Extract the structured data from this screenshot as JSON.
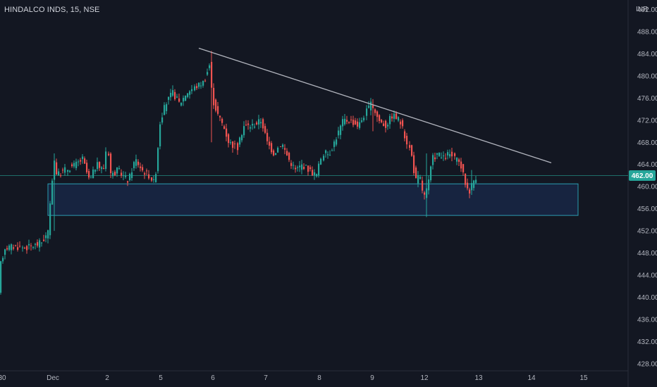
{
  "header": {
    "title": "HINDALCO INDS, 15, NSE",
    "currency": "INR"
  },
  "colors": {
    "background": "#131722",
    "up": "#26a69a",
    "down": "#ef5350",
    "trendline": "#b2b5be",
    "zone_fill": "#1c2f5a",
    "zone_stroke": "#2a9cb0",
    "last_price_line": "#26a69a",
    "grid": "#1e222d"
  },
  "chart_data": {
    "type": "candlestick",
    "title": "HINDALCO INDS, 15, NSE",
    "ylim": [
      426,
      496
    ],
    "grid": false,
    "y_ticks": [
      428,
      432,
      436,
      440,
      444,
      448,
      452,
      456,
      460,
      464,
      468,
      472,
      476,
      480,
      484,
      488,
      492
    ],
    "y_tick_labels": [
      "428.00",
      "432.00",
      "436.00",
      "440.00",
      "444.00",
      "448.00",
      "452.00",
      "456.00",
      "460.00",
      "464.00",
      "468.00",
      "472.00",
      "476.00",
      "480.00",
      "484.00",
      "488.00",
      "492.00"
    ],
    "x_tick_labels": [
      "30",
      "Dec",
      "2",
      "5",
      "6",
      "7",
      "8",
      "9",
      "12",
      "13",
      "14",
      "15"
    ],
    "last_price": 462.0,
    "last_price_label": "462.00",
    "support_zone": {
      "low": 454.8,
      "high": 460.5,
      "from": "Dec 1",
      "to": "Dec 15"
    },
    "trendline": {
      "from": [
        "Dec 6",
        485.0
      ],
      "to": [
        "Dec 14",
        464.3
      ]
    },
    "candles_summary": [
      {
        "session": "30",
        "open": 438.5,
        "high": 449.5,
        "low": 438.0,
        "close": 449.0
      },
      {
        "session": "Dec 1",
        "open": 450.5,
        "high": 466.5,
        "low": 454.0,
        "close": 463.0
      },
      {
        "session": "2",
        "open": 463.0,
        "high": 470.5,
        "low": 457.5,
        "close": 463.0
      },
      {
        "session": "5",
        "open": 466.0,
        "high": 484.5,
        "low": 468.0,
        "close": 483.0
      },
      {
        "session": "6",
        "open": 477.0,
        "high": 477.0,
        "low": 467.5,
        "close": 470.0
      },
      {
        "session": "7",
        "open": 470.0,
        "high": 472.5,
        "low": 462.5,
        "close": 464.5
      },
      {
        "session": "8",
        "open": 464.0,
        "high": 473.0,
        "low": 461.5,
        "close": 471.5
      },
      {
        "session": "9",
        "open": 472.5,
        "high": 475.5,
        "low": 461.0,
        "close": 466.0
      },
      {
        "session": "12",
        "open": 462.5,
        "high": 467.0,
        "low": 454.5,
        "close": 466.0
      },
      {
        "session": "13",
        "open": 460.5,
        "high": 463.0,
        "low": 458.5,
        "close": 462.0
      }
    ]
  }
}
